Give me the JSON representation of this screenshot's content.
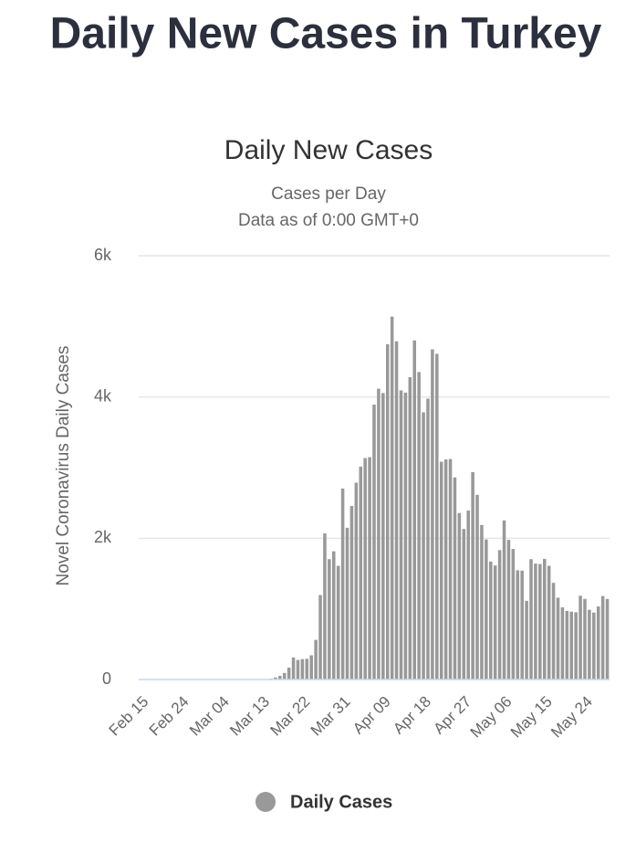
{
  "page_title": "Daily New Cases in Turkey",
  "chart_data": {
    "type": "bar",
    "title": "Daily New Cases",
    "subtitle": [
      "Cases per Day",
      "Data as of 0:00 GMT+0"
    ],
    "y_label": "Novel Coronavirus Daily Cases",
    "categories": [
      "Feb 15",
      null,
      null,
      null,
      null,
      null,
      null,
      null,
      null,
      "Feb 24",
      null,
      null,
      null,
      null,
      null,
      null,
      null,
      null,
      "Mar 04",
      null,
      null,
      null,
      null,
      null,
      null,
      null,
      null,
      "Mar 13",
      null,
      null,
      null,
      null,
      null,
      null,
      null,
      null,
      "Mar 22",
      null,
      null,
      null,
      null,
      null,
      null,
      null,
      null,
      "Mar 31",
      null,
      null,
      null,
      null,
      null,
      null,
      null,
      null,
      "Apr 09",
      null,
      null,
      null,
      null,
      null,
      null,
      null,
      null,
      "Apr 18",
      null,
      null,
      null,
      null,
      null,
      null,
      null,
      null,
      "Apr 27",
      null,
      null,
      null,
      null,
      null,
      null,
      null,
      null,
      "May 06",
      null,
      null,
      null,
      null,
      null,
      null,
      null,
      null,
      "May 15",
      null,
      null,
      null,
      null,
      null,
      null,
      null,
      null,
      "May 24",
      null,
      null,
      null,
      null,
      null
    ],
    "series": [
      {
        "name": "Daily Cases",
        "color": "#999999",
        "values": [
          0,
          0,
          0,
          0,
          0,
          0,
          0,
          0,
          0,
          0,
          0,
          0,
          0,
          0,
          0,
          0,
          0,
          0,
          0,
          0,
          0,
          0,
          0,
          0,
          0,
          1,
          0,
          4,
          1,
          12,
          29,
          51,
          93,
          168,
          311,
          277,
          289,
          293,
          343,
          561,
          1196,
          2069,
          1704,
          1815,
          1610,
          2704,
          2148,
          2456,
          2786,
          3013,
          3135,
          3148,
          3892,
          4117,
          4056,
          4747,
          5138,
          4789,
          4093,
          4062,
          4281,
          4801,
          4353,
          3783,
          3977,
          4674,
          4611,
          3083,
          3116,
          3122,
          2861,
          2357,
          2131,
          2392,
          2936,
          2615,
          2188,
          1983,
          1670,
          1614,
          1832,
          2253,
          1977,
          1848,
          1546,
          1542,
          1114,
          1704,
          1641,
          1635,
          1708,
          1610,
          1368,
          1158,
          1022,
          972,
          961,
          952,
          1186,
          1141,
          987,
          948,
          1035,
          1182,
          1141
        ]
      }
    ],
    "ylim": [
      0,
      6000
    ],
    "yticks": [
      0,
      {
        "value": 2000,
        "label": "2k"
      },
      {
        "value": 4000,
        "label": "4k"
      },
      {
        "value": 6000,
        "label": "6k"
      }
    ],
    "grid": true
  }
}
